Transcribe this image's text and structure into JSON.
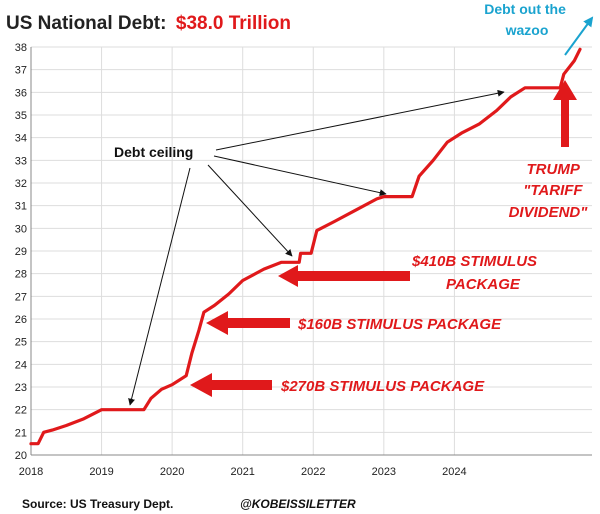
{
  "colors": {
    "line": "#e0191b",
    "accent_red": "#e0191b",
    "accent_blue": "#1aa3cf",
    "text": "#222222",
    "grid": "#dddddd"
  },
  "chart_data": {
    "type": "line",
    "title_prefix": "US National Debt:",
    "title_value": "$38.0 Trillion",
    "xlabel": "",
    "ylabel": "",
    "ylim": [
      20,
      38
    ],
    "xlim": [
      2018.0,
      2025.95
    ],
    "grid": true,
    "x_ticks": [
      2018,
      2019,
      2020,
      2021,
      2022,
      2023,
      2024
    ],
    "y_ticks": [
      20,
      21,
      22,
      23,
      24,
      25,
      26,
      27,
      28,
      29,
      30,
      31,
      32,
      33,
      34,
      35,
      36,
      37,
      38
    ],
    "series": [
      {
        "name": "US National Debt ($T)",
        "points": [
          [
            2018.0,
            20.5
          ],
          [
            2018.1,
            20.5
          ],
          [
            2018.18,
            21.0
          ],
          [
            2018.3,
            21.1
          ],
          [
            2018.5,
            21.3
          ],
          [
            2018.75,
            21.6
          ],
          [
            2019.0,
            22.0
          ],
          [
            2019.15,
            22.0
          ],
          [
            2019.6,
            22.0
          ],
          [
            2019.7,
            22.5
          ],
          [
            2019.85,
            22.9
          ],
          [
            2020.0,
            23.1
          ],
          [
            2020.2,
            23.5
          ],
          [
            2020.28,
            24.5
          ],
          [
            2020.38,
            25.5
          ],
          [
            2020.45,
            26.3
          ],
          [
            2020.6,
            26.6
          ],
          [
            2020.8,
            27.1
          ],
          [
            2021.0,
            27.7
          ],
          [
            2021.3,
            28.2
          ],
          [
            2021.55,
            28.5
          ],
          [
            2021.8,
            28.5
          ],
          [
            2021.82,
            28.9
          ],
          [
            2021.97,
            28.9
          ],
          [
            2022.05,
            29.9
          ],
          [
            2022.3,
            30.3
          ],
          [
            2022.6,
            30.8
          ],
          [
            2022.9,
            31.3
          ],
          [
            2023.0,
            31.4
          ],
          [
            2023.4,
            31.4
          ],
          [
            2023.5,
            32.3
          ],
          [
            2023.7,
            33.0
          ],
          [
            2023.9,
            33.8
          ],
          [
            2024.1,
            34.2
          ],
          [
            2024.35,
            34.6
          ],
          [
            2024.6,
            35.2
          ],
          [
            2024.8,
            35.8
          ],
          [
            2025.0,
            36.2
          ],
          [
            2025.1,
            36.2
          ],
          [
            2025.25,
            36.2
          ],
          [
            2025.5,
            36.2
          ],
          [
            2025.55,
            36.8
          ],
          [
            2025.7,
            37.4
          ],
          [
            2025.78,
            37.9
          ]
        ]
      }
    ],
    "annotations": {
      "debt_ceiling_label": "Debt ceiling",
      "stimulus_410": [
        "$410B STIMULUS",
        "PACKAGE"
      ],
      "stimulus_160": "$160B STIMULUS PACKAGE",
      "stimulus_270": "$270B STIMULUS PACKAGE",
      "trump": [
        "TRUMP",
        "\"TARIFF",
        "DIVIDEND\""
      ],
      "wazoo": [
        "Debt out the",
        "wazoo"
      ]
    }
  },
  "footer": {
    "source": "Source: US Treasury Dept.",
    "handle": "@KOBEISSILETTER"
  }
}
